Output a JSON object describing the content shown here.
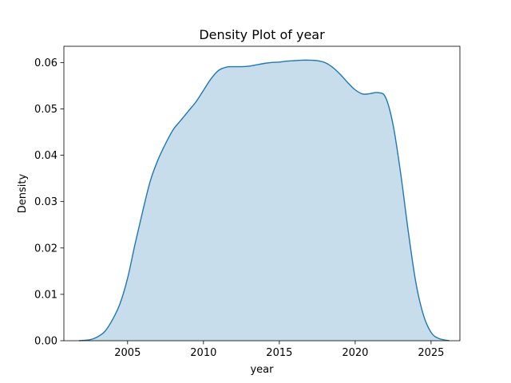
{
  "chart_data": {
    "type": "area",
    "title": "Density Plot of year",
    "xlabel": "year",
    "ylabel": "Density",
    "xlim": [
      2000.8,
      2026.9
    ],
    "ylim": [
      0,
      0.0635
    ],
    "xticks": [
      2005,
      2010,
      2015,
      2020,
      2025
    ],
    "xtick_labels": [
      "2005",
      "2010",
      "2015",
      "2020",
      "2025"
    ],
    "yticks": [
      0,
      0.01,
      0.02,
      0.03,
      0.04,
      0.05,
      0.06
    ],
    "ytick_labels": [
      "0.00",
      "0.01",
      "0.02",
      "0.03",
      "0.04",
      "0.05",
      "0.06"
    ],
    "grid": false,
    "legend": false,
    "series": [
      {
        "color": "#1f77b4",
        "fill_color": "#1f77b4",
        "fill_alpha": 0.25,
        "x": [
          2001.8,
          2002.5,
          2003.0,
          2003.5,
          2004.0,
          2004.5,
          2005.0,
          2005.5,
          2006.0,
          2006.5,
          2007.0,
          2007.5,
          2008.0,
          2008.5,
          2009.0,
          2009.5,
          2010.0,
          2010.5,
          2011.0,
          2011.5,
          2012.0,
          2012.5,
          2013.0,
          2013.5,
          2014.0,
          2014.5,
          2015.0,
          2015.5,
          2016.0,
          2016.5,
          2017.0,
          2017.5,
          2018.0,
          2018.5,
          2019.0,
          2019.5,
          2020.0,
          2020.5,
          2021.0,
          2021.5,
          2022.0,
          2022.5,
          2023.0,
          2023.5,
          2024.0,
          2024.5,
          2025.0,
          2025.5,
          2026.2
        ],
        "y": [
          0.0,
          0.0002,
          0.0008,
          0.002,
          0.0045,
          0.008,
          0.0135,
          0.021,
          0.028,
          0.0345,
          0.039,
          0.0425,
          0.0455,
          0.0475,
          0.0495,
          0.0515,
          0.054,
          0.0565,
          0.0583,
          0.059,
          0.0591,
          0.0591,
          0.0592,
          0.0595,
          0.0598,
          0.06,
          0.0601,
          0.0603,
          0.0604,
          0.0605,
          0.0605,
          0.0604,
          0.06,
          0.059,
          0.0575,
          0.0557,
          0.0541,
          0.0532,
          0.0533,
          0.0535,
          0.0525,
          0.0465,
          0.036,
          0.0235,
          0.0125,
          0.0055,
          0.0018,
          0.0005,
          0.0
        ]
      }
    ]
  }
}
